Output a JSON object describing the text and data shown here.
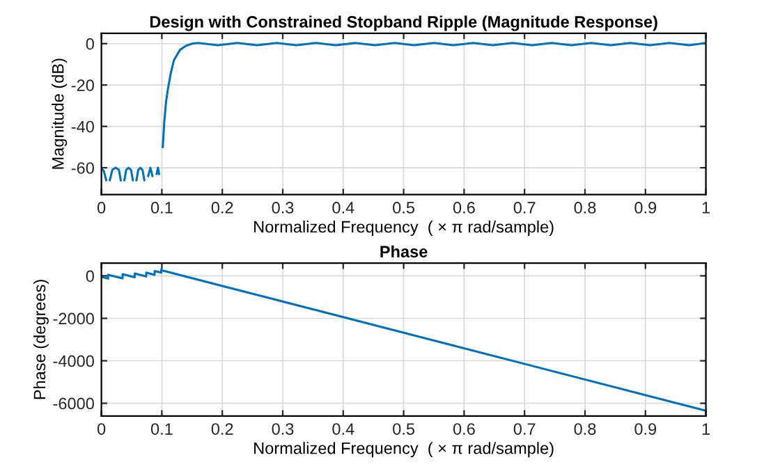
{
  "chart_data": [
    {
      "type": "line",
      "title": "Design with Constrained Stopband Ripple (Magnitude Response)",
      "xlabel": "Normalized Frequency  ( × π rad/sample)",
      "ylabel": "Magnitude (dB)",
      "xlim": [
        0,
        1
      ],
      "ylim": [
        -73,
        5
      ],
      "xticks": [
        0,
        0.1,
        0.2,
        0.3,
        0.4,
        0.5,
        0.6,
        0.7,
        0.8,
        0.9,
        1
      ],
      "yticks": [
        -60,
        -40,
        -20,
        0
      ],
      "grid": true,
      "marker": "none",
      "line_style": "solid",
      "series": [
        {
          "color": "#0072bd",
          "x": [
            0,
            0.004,
            0.008,
            0.011,
            0.014,
            0.018,
            0.0235,
            0.029,
            0.032,
            0.035,
            0.038,
            0.041,
            0.045,
            0.049,
            0.052,
            0.055,
            0.058,
            0.061,
            0.0645,
            0.068,
            0.071,
            0.074,
            0.0775,
            0.081,
            0.0845,
            0.088,
            0.0915,
            0.0935,
            0.0955,
            0.099,
            0.1,
            0.1015,
            0.104,
            0.107,
            0.11,
            0.115,
            0.12,
            0.13,
            0.14,
            0.15,
            0.16,
            0.1925,
            0.225,
            0.2575,
            0.29,
            0.3225,
            0.355,
            0.3875,
            0.42,
            0.4525,
            0.485,
            0.5175,
            0.55,
            0.5825,
            0.615,
            0.6475,
            0.68,
            0.7125,
            0.745,
            0.7775,
            0.81,
            0.8425,
            0.875,
            0.9075,
            0.94,
            0.9725,
            1
          ],
          "values": [
            -60.5,
            -61.5,
            -66,
            null,
            -66,
            -61,
            -60,
            -61,
            -66,
            null,
            -66,
            -61,
            -60,
            -61,
            -66,
            null,
            -66,
            -61,
            -60,
            -61,
            -66,
            null,
            -64,
            -60,
            -64,
            null,
            -63,
            -60,
            -63,
            null,
            null,
            -50,
            -38,
            -28,
            -22,
            -14,
            -8,
            -3,
            -1,
            0,
            0.3,
            -0.8,
            0.3,
            -0.8,
            0.3,
            -0.8,
            0.3,
            -0.8,
            0.3,
            -0.8,
            0.3,
            -0.8,
            0.3,
            -0.8,
            0.3,
            -0.8,
            0.3,
            -0.8,
            0.3,
            -0.8,
            0.3,
            -0.8,
            0.3,
            -0.8,
            0.3,
            -0.8,
            0.3
          ]
        }
      ]
    },
    {
      "type": "line",
      "title": "Phase",
      "xlabel": "Normalized Frequency  ( × π rad/sample)",
      "ylabel": "Phase (degrees)",
      "xlim": [
        0,
        1
      ],
      "ylim": [
        -6600,
        600
      ],
      "xticks": [
        0,
        0.1,
        0.2,
        0.3,
        0.4,
        0.5,
        0.6,
        0.7,
        0.8,
        0.9,
        1
      ],
      "yticks": [
        -6000,
        -4000,
        -2000,
        0
      ],
      "grid": true,
      "marker": "none",
      "line_style": "solid",
      "series": [
        {
          "color": "#0072bd",
          "x": [
            0,
            0.011,
            0.0111,
            0.035,
            0.0351,
            0.055,
            0.0551,
            0.074,
            0.0741,
            0.088,
            0.0881,
            0.099,
            0.0991,
            0.1,
            1
          ],
          "values": [
            -50,
            -130,
            50,
            -120,
            80,
            -70,
            110,
            -30,
            150,
            50,
            230,
            150,
            300,
            260,
            -6350
          ]
        }
      ]
    }
  ]
}
